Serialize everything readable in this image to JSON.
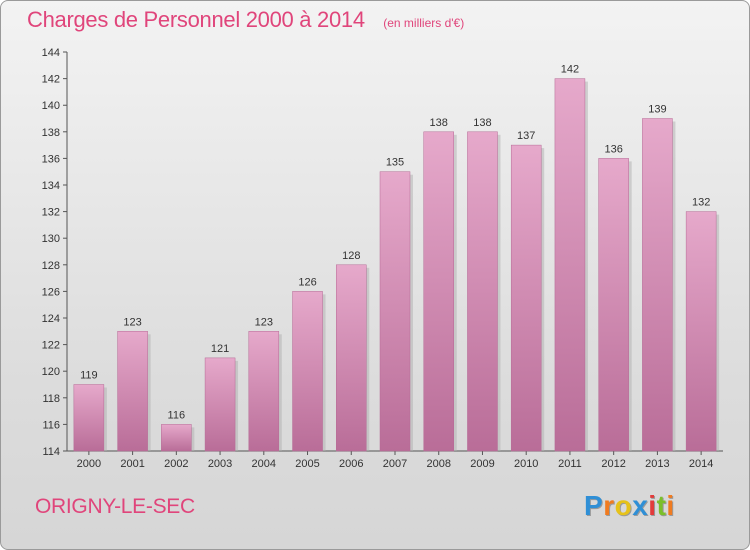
{
  "chart_data": {
    "type": "bar",
    "title": "Charges de Personnel 2000 à 2014",
    "subtitle": "(en milliers d'€)",
    "categories": [
      "2000",
      "2001",
      "2002",
      "2003",
      "2004",
      "2005",
      "2006",
      "2007",
      "2008",
      "2009",
      "2010",
      "2011",
      "2012",
      "2013",
      "2014"
    ],
    "values": [
      119,
      123,
      116,
      121,
      123,
      126,
      128,
      135,
      138,
      138,
      137,
      142,
      136,
      139,
      132
    ],
    "ylim": [
      114,
      144
    ],
    "yticks": [
      114,
      116,
      118,
      120,
      122,
      124,
      126,
      128,
      130,
      132,
      134,
      136,
      138,
      140,
      142,
      144
    ],
    "grid": false,
    "bar_color": "#d98db5"
  },
  "commune": "ORIGNY-LE-SEC",
  "logo": {
    "letters": [
      "P",
      "r",
      "o",
      "x",
      "i",
      "t",
      "i"
    ],
    "colors": [
      "#2f8fd6",
      "#f07b20",
      "#e6c21a",
      "#2f8fd6",
      "#e23b3b",
      "#7bbf2a",
      "#f07b20"
    ]
  }
}
